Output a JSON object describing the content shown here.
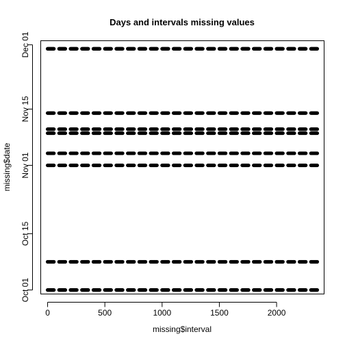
{
  "chart_data": {
    "type": "scatter",
    "title": "Days and intervals missing values",
    "xlabel": "missing$interval",
    "ylabel": "missing$date",
    "xlim": [
      -60,
      2415
    ],
    "x_ticks": [
      0,
      500,
      1000,
      1500,
      2000
    ],
    "x_tick_labels": [
      "0",
      "500",
      "1000",
      "1500",
      "2000"
    ],
    "ylim": [
      "2012-09-30",
      "2012-12-02"
    ],
    "y_ticks": [
      "2012-10-01",
      "2012-10-15",
      "2012-11-01",
      "2012-11-15",
      "2012-12-01"
    ],
    "y_tick_labels": [
      "Oct 01",
      "Oct 15",
      "Nov 01",
      "Nov 15",
      "Dec 01"
    ],
    "interval_range": [
      0,
      2355
    ],
    "interval_step_minutes": 5,
    "point_style": "filled-circle",
    "point_color": "#000000",
    "series": [
      {
        "date": "2012-10-01"
      },
      {
        "date": "2012-10-08"
      },
      {
        "date": "2012-11-01"
      },
      {
        "date": "2012-11-04"
      },
      {
        "date": "2012-11-09"
      },
      {
        "date": "2012-11-10"
      },
      {
        "date": "2012-11-14"
      },
      {
        "date": "2012-11-30"
      }
    ]
  }
}
